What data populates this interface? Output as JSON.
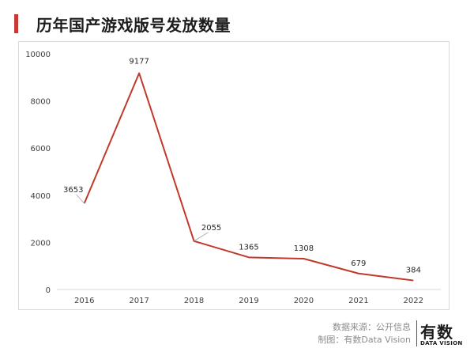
{
  "title": "历年国产游戏版号发放数量",
  "footer": {
    "source": "数据来源：公开信息",
    "made_by": "制图：有数Data Vision"
  },
  "logo": {
    "main": "有数",
    "sub": "DATA VISION"
  },
  "colors": {
    "accent": "#c73a33",
    "line": "#c0392b"
  },
  "chart_data": {
    "type": "line",
    "x": [
      "2016",
      "2017",
      "2018",
      "2019",
      "2020",
      "2021",
      "2022"
    ],
    "series": [
      {
        "values": [
          3653,
          9177,
          2055,
          1365,
          1308,
          679,
          384
        ]
      }
    ],
    "data_labels": [
      "3653",
      "9177",
      "2055",
      "1365",
      "1308",
      "679",
      "384"
    ],
    "yticks": [
      0,
      2000,
      4000,
      6000,
      8000,
      10000
    ],
    "ylim": [
      0,
      10000
    ],
    "grid": false,
    "legend": "none"
  }
}
